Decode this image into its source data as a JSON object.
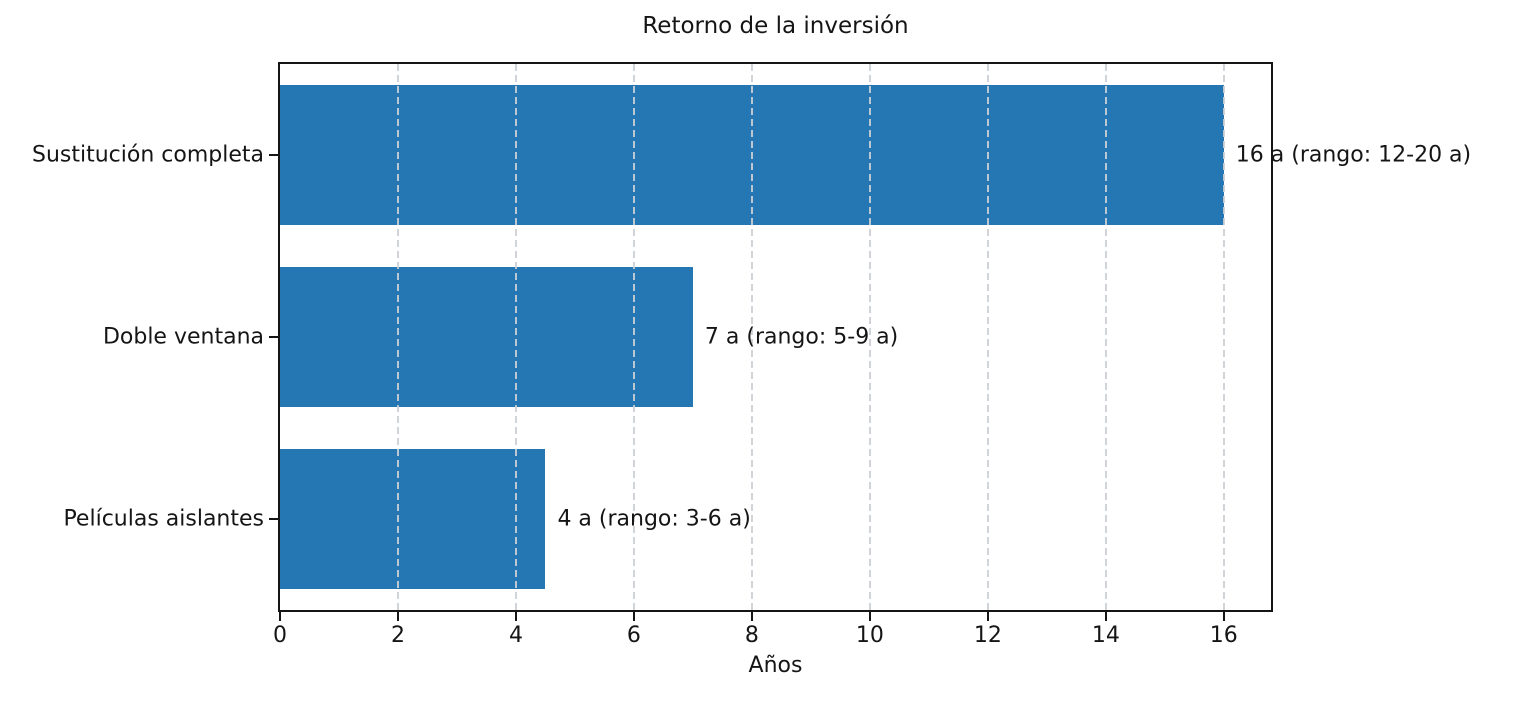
{
  "chart_data": {
    "type": "bar",
    "orientation": "horizontal",
    "title": "Retorno de la inversión",
    "xlabel": "Años",
    "categories": [
      "Sustitución completa",
      "Doble ventana",
      "Películas aislantes"
    ],
    "values": [
      16,
      7,
      4.5
    ],
    "bar_labels": [
      "16 a (rango: 12-20 a)",
      "7 a (rango: 5-9 a)",
      "4 a (rango: 3-6 a)"
    ],
    "ranges_years": [
      [
        12,
        20
      ],
      [
        5,
        9
      ],
      [
        3,
        6
      ]
    ],
    "xlim": [
      0,
      16.8
    ],
    "xticks": [
      0,
      2,
      4,
      6,
      8,
      10,
      12,
      14,
      16
    ],
    "grid": "dashed-vertical",
    "legend": "none",
    "colors": {
      "bar": "#2577b4",
      "text": "#151515",
      "spine": "#151515",
      "grid": "#cbd0d5",
      "background": "#ffffff"
    }
  }
}
